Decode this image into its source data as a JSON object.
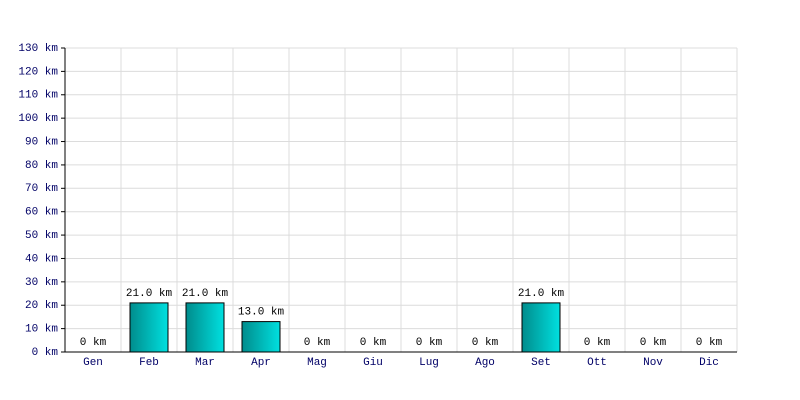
{
  "chart_data": {
    "type": "bar",
    "categories": [
      "Gen",
      "Feb",
      "Mar",
      "Apr",
      "Mag",
      "Giu",
      "Lug",
      "Ago",
      "Set",
      "Ott",
      "Nov",
      "Dic"
    ],
    "values": [
      0,
      21,
      21,
      13,
      0,
      0,
      0,
      0,
      21,
      0,
      0,
      0
    ],
    "value_labels": [
      "0 km",
      "21.0 km",
      "21.0 km",
      "13.0 km",
      "0 km",
      "0 km",
      "0 km",
      "0 km",
      "21.0 km",
      "0 km",
      "0 km",
      "0 km"
    ],
    "color": "#00e0e0",
    "ylim": [
      0,
      130
    ],
    "yticks": [
      {
        "value": 0,
        "label": "0 km"
      },
      {
        "value": 10,
        "label": "10 km"
      },
      {
        "value": 20,
        "label": "20 km"
      },
      {
        "value": 30,
        "label": "30 km"
      },
      {
        "value": 40,
        "label": "40 km"
      },
      {
        "value": 50,
        "label": "50 km"
      },
      {
        "value": 60,
        "label": "60 km"
      },
      {
        "value": 70,
        "label": "70 km"
      },
      {
        "value": 80,
        "label": "80 km"
      },
      {
        "value": 90,
        "label": "90 km"
      },
      {
        "value": 100,
        "label": "100 km"
      },
      {
        "value": 110,
        "label": "110 km"
      },
      {
        "value": 120,
        "label": "120 km"
      },
      {
        "value": 130,
        "label": "130 km"
      }
    ],
    "grid": true
  }
}
